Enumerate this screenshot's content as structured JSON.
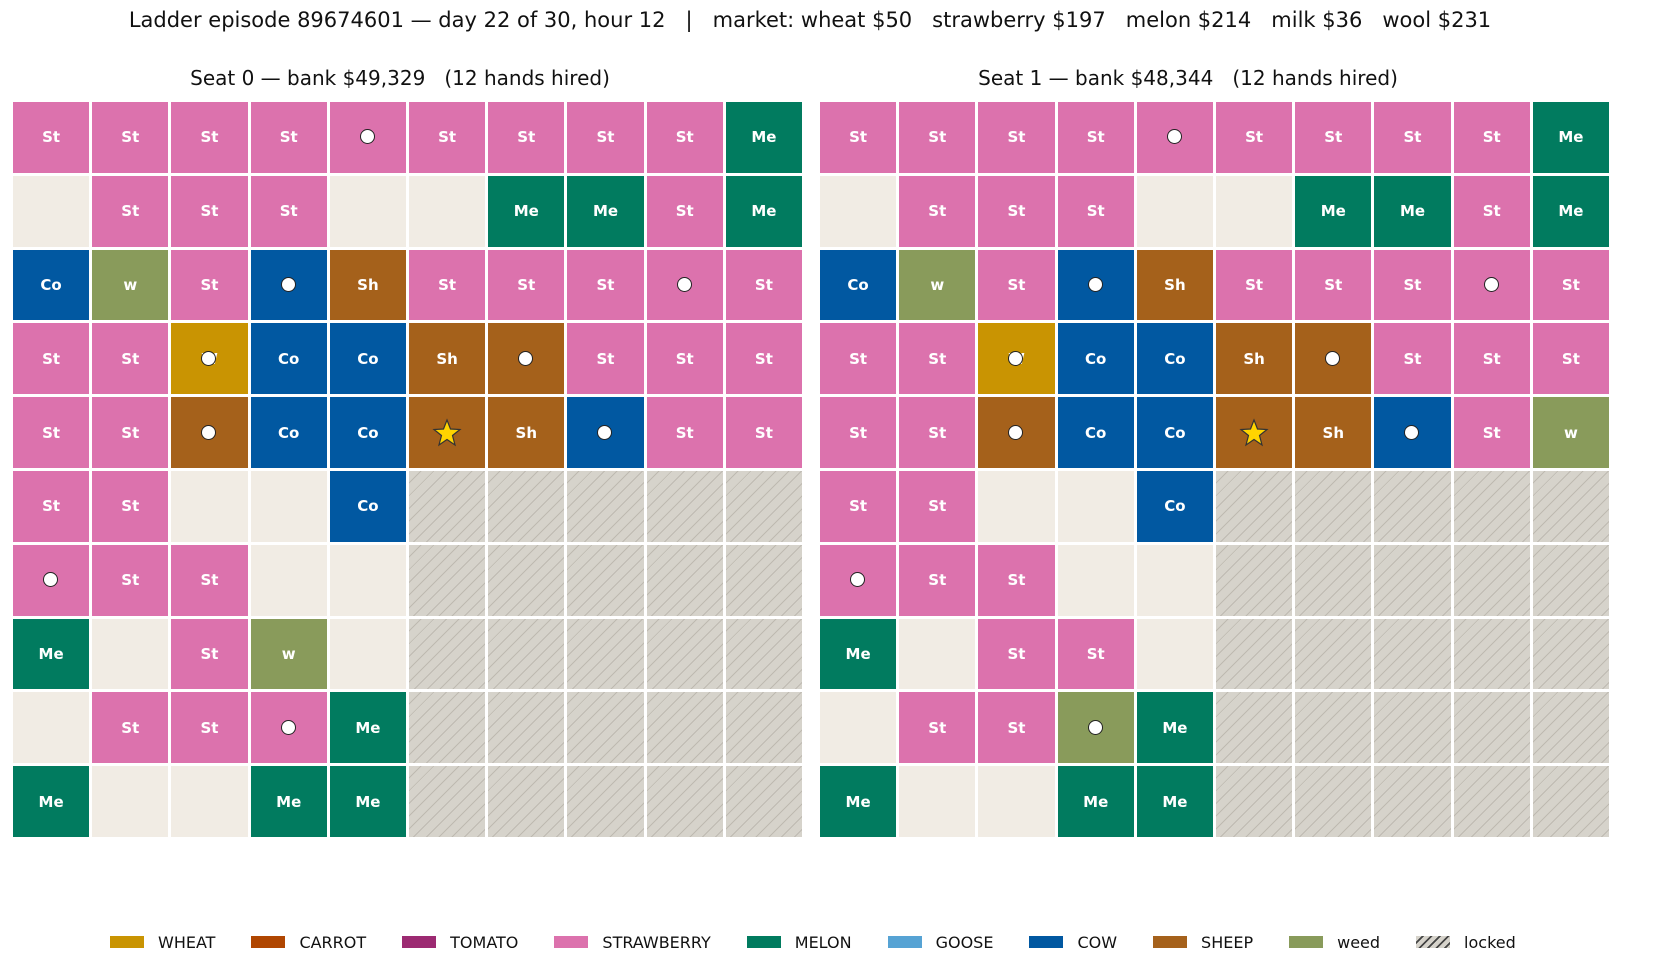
{
  "title": "Ladder episode 89674601 — day 22 of 30, hour 12   |   market: wheat $50   strawberry $197   melon $214   milk $36   wool $231",
  "colors": {
    "St": "#dc72ad",
    "Me": "#017b5f",
    "Co": "#0158a1",
    "Sh": "#a5611b",
    "Wh": "#c99402",
    "w": "#899b5b",
    "empty": "#f1ece4",
    "locked": "#d6d3cb"
  },
  "boards": [
    {
      "title": "Seat 0 — bank $49,329   (12 hands hired)",
      "rows": [
        [
          {
            "t": "St"
          },
          {
            "t": "St"
          },
          {
            "t": "St"
          },
          {
            "t": "St"
          },
          {
            "t": "St",
            "label": "",
            "worker": true
          },
          {
            "t": "St"
          },
          {
            "t": "St"
          },
          {
            "t": "St"
          },
          {
            "t": "St"
          },
          {
            "t": "Me"
          }
        ],
        [
          {
            "t": "empty"
          },
          {
            "t": "St"
          },
          {
            "t": "St"
          },
          {
            "t": "St"
          },
          {
            "t": "empty"
          },
          {
            "t": "empty"
          },
          {
            "t": "Me"
          },
          {
            "t": "Me"
          },
          {
            "t": "St"
          },
          {
            "t": "Me"
          }
        ],
        [
          {
            "t": "Co"
          },
          {
            "t": "w"
          },
          {
            "t": "St"
          },
          {
            "t": "Co",
            "label": "C",
            "worker": true
          },
          {
            "t": "Sh"
          },
          {
            "t": "St"
          },
          {
            "t": "St"
          },
          {
            "t": "St"
          },
          {
            "t": "St",
            "label": "S",
            "worker": true
          },
          {
            "t": "St"
          }
        ],
        [
          {
            "t": "St"
          },
          {
            "t": "St"
          },
          {
            "t": "Wh",
            "label": "W",
            "worker": true
          },
          {
            "t": "Co"
          },
          {
            "t": "Co"
          },
          {
            "t": "Sh"
          },
          {
            "t": "Sh",
            "label": "S",
            "worker": true
          },
          {
            "t": "St"
          },
          {
            "t": "St"
          },
          {
            "t": "St"
          }
        ],
        [
          {
            "t": "St"
          },
          {
            "t": "St"
          },
          {
            "t": "Sh",
            "label": "S",
            "worker": true
          },
          {
            "t": "Co"
          },
          {
            "t": "Co"
          },
          {
            "t": "Sh",
            "label": "",
            "star": true
          },
          {
            "t": "Sh"
          },
          {
            "t": "Co",
            "label": "C",
            "worker": true
          },
          {
            "t": "St"
          },
          {
            "t": "St"
          }
        ],
        [
          {
            "t": "St"
          },
          {
            "t": "St"
          },
          {
            "t": "empty"
          },
          {
            "t": "empty"
          },
          {
            "t": "Co"
          },
          {
            "t": "locked"
          },
          {
            "t": "locked"
          },
          {
            "t": "locked"
          },
          {
            "t": "locked"
          },
          {
            "t": "locked"
          }
        ],
        [
          {
            "t": "St",
            "label": "",
            "worker": true
          },
          {
            "t": "St"
          },
          {
            "t": "St"
          },
          {
            "t": "empty"
          },
          {
            "t": "empty"
          },
          {
            "t": "locked"
          },
          {
            "t": "locked"
          },
          {
            "t": "locked"
          },
          {
            "t": "locked"
          },
          {
            "t": "locked"
          }
        ],
        [
          {
            "t": "Me"
          },
          {
            "t": "empty"
          },
          {
            "t": "St"
          },
          {
            "t": "w"
          },
          {
            "t": "empty"
          },
          {
            "t": "locked"
          },
          {
            "t": "locked"
          },
          {
            "t": "locked"
          },
          {
            "t": "locked"
          },
          {
            "t": "locked"
          }
        ],
        [
          {
            "t": "empty"
          },
          {
            "t": "St"
          },
          {
            "t": "St"
          },
          {
            "t": "St",
            "label": "S",
            "worker": true
          },
          {
            "t": "Me"
          },
          {
            "t": "locked"
          },
          {
            "t": "locked"
          },
          {
            "t": "locked"
          },
          {
            "t": "locked"
          },
          {
            "t": "locked"
          }
        ],
        [
          {
            "t": "Me"
          },
          {
            "t": "empty"
          },
          {
            "t": "empty"
          },
          {
            "t": "Me"
          },
          {
            "t": "Me"
          },
          {
            "t": "locked"
          },
          {
            "t": "locked"
          },
          {
            "t": "locked"
          },
          {
            "t": "locked"
          },
          {
            "t": "locked"
          }
        ]
      ]
    },
    {
      "title": "Seat 1 — bank $48,344   (12 hands hired)",
      "rows": [
        [
          {
            "t": "St"
          },
          {
            "t": "St"
          },
          {
            "t": "St"
          },
          {
            "t": "St"
          },
          {
            "t": "St",
            "label": "",
            "worker": true
          },
          {
            "t": "St"
          },
          {
            "t": "St"
          },
          {
            "t": "St"
          },
          {
            "t": "St"
          },
          {
            "t": "Me"
          }
        ],
        [
          {
            "t": "empty"
          },
          {
            "t": "St"
          },
          {
            "t": "St"
          },
          {
            "t": "St"
          },
          {
            "t": "empty"
          },
          {
            "t": "empty"
          },
          {
            "t": "Me"
          },
          {
            "t": "Me"
          },
          {
            "t": "St"
          },
          {
            "t": "Me"
          }
        ],
        [
          {
            "t": "Co"
          },
          {
            "t": "w"
          },
          {
            "t": "St"
          },
          {
            "t": "Co",
            "label": "C",
            "worker": true
          },
          {
            "t": "Sh"
          },
          {
            "t": "St"
          },
          {
            "t": "St"
          },
          {
            "t": "St"
          },
          {
            "t": "St",
            "label": "S",
            "worker": true
          },
          {
            "t": "St"
          }
        ],
        [
          {
            "t": "St"
          },
          {
            "t": "St"
          },
          {
            "t": "Wh",
            "label": "W",
            "worker": true
          },
          {
            "t": "Co"
          },
          {
            "t": "Co"
          },
          {
            "t": "Sh"
          },
          {
            "t": "Sh",
            "label": "S",
            "worker": true
          },
          {
            "t": "St"
          },
          {
            "t": "St"
          },
          {
            "t": "St"
          }
        ],
        [
          {
            "t": "St"
          },
          {
            "t": "St"
          },
          {
            "t": "Sh",
            "label": "S",
            "worker": true
          },
          {
            "t": "Co"
          },
          {
            "t": "Co"
          },
          {
            "t": "Sh",
            "label": "",
            "star": true
          },
          {
            "t": "Sh"
          },
          {
            "t": "Co",
            "label": "C",
            "worker": true
          },
          {
            "t": "St"
          },
          {
            "t": "w"
          }
        ],
        [
          {
            "t": "St"
          },
          {
            "t": "St"
          },
          {
            "t": "empty"
          },
          {
            "t": "empty"
          },
          {
            "t": "Co"
          },
          {
            "t": "locked"
          },
          {
            "t": "locked"
          },
          {
            "t": "locked"
          },
          {
            "t": "locked"
          },
          {
            "t": "locked"
          }
        ],
        [
          {
            "t": "St",
            "label": "",
            "worker": true
          },
          {
            "t": "St"
          },
          {
            "t": "St"
          },
          {
            "t": "empty"
          },
          {
            "t": "empty"
          },
          {
            "t": "locked"
          },
          {
            "t": "locked"
          },
          {
            "t": "locked"
          },
          {
            "t": "locked"
          },
          {
            "t": "locked"
          }
        ],
        [
          {
            "t": "Me"
          },
          {
            "t": "empty"
          },
          {
            "t": "St"
          },
          {
            "t": "St"
          },
          {
            "t": "empty"
          },
          {
            "t": "locked"
          },
          {
            "t": "locked"
          },
          {
            "t": "locked"
          },
          {
            "t": "locked"
          },
          {
            "t": "locked"
          }
        ],
        [
          {
            "t": "empty"
          },
          {
            "t": "St"
          },
          {
            "t": "St"
          },
          {
            "t": "w",
            "label": "",
            "worker": true
          },
          {
            "t": "Me"
          },
          {
            "t": "locked"
          },
          {
            "t": "locked"
          },
          {
            "t": "locked"
          },
          {
            "t": "locked"
          },
          {
            "t": "locked"
          }
        ],
        [
          {
            "t": "Me"
          },
          {
            "t": "empty"
          },
          {
            "t": "empty"
          },
          {
            "t": "Me"
          },
          {
            "t": "Me"
          },
          {
            "t": "locked"
          },
          {
            "t": "locked"
          },
          {
            "t": "locked"
          },
          {
            "t": "locked"
          },
          {
            "t": "locked"
          }
        ]
      ]
    }
  ],
  "legend": [
    {
      "label": "WHEAT",
      "color": "#c99402"
    },
    {
      "label": "CARROT",
      "color": "#b04601"
    },
    {
      "label": "TOMATO",
      "color": "#9c2a72"
    },
    {
      "label": "STRAWBERRY",
      "color": "#dc72ad"
    },
    {
      "label": "MELON",
      "color": "#017b5f"
    },
    {
      "label": "GOOSE",
      "color": "#56a3d4"
    },
    {
      "label": "COW",
      "color": "#0158a1"
    },
    {
      "label": "SHEEP",
      "color": "#a5611b"
    },
    {
      "label": "weed",
      "color": "#899b5b"
    },
    {
      "label": "locked",
      "color": "locked"
    }
  ]
}
